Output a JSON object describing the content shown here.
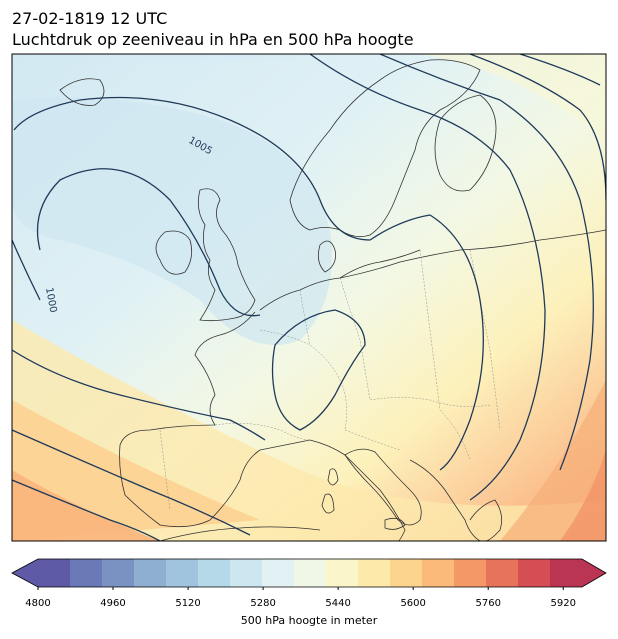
{
  "header": {
    "datetime": "27-02-1819 12 UTC",
    "subtitle": "Luchtdruk op zeeniveau in hPa en 500 hPa hoogte"
  },
  "map": {
    "region": "Europe",
    "field": "500 hPa geopotential height (filled)",
    "contours": "sea level pressure (lines)",
    "isobar_labels": [
      "1005",
      "1000"
    ],
    "contour_color": "#1f3a5a",
    "coastline_color": "#333333",
    "border_color": "#8c8c8c"
  },
  "colorbar": {
    "label": "500 hPa hoogte in meter",
    "ticks": [
      "4800",
      "4960",
      "5120",
      "5280",
      "5440",
      "5600",
      "5760",
      "5920"
    ],
    "range": [
      4800,
      5960
    ],
    "colors": [
      "#5e5aa6",
      "#6b79b6",
      "#7a92c2",
      "#8eaed2",
      "#a1c4de",
      "#b6d9ea",
      "#cde7f0",
      "#e2f2f4",
      "#f1f7e6",
      "#fbf6ca",
      "#fde9a9",
      "#fdd48e",
      "#fbb97a",
      "#f49868",
      "#e8735b",
      "#d54e54",
      "#b93553"
    ]
  }
}
